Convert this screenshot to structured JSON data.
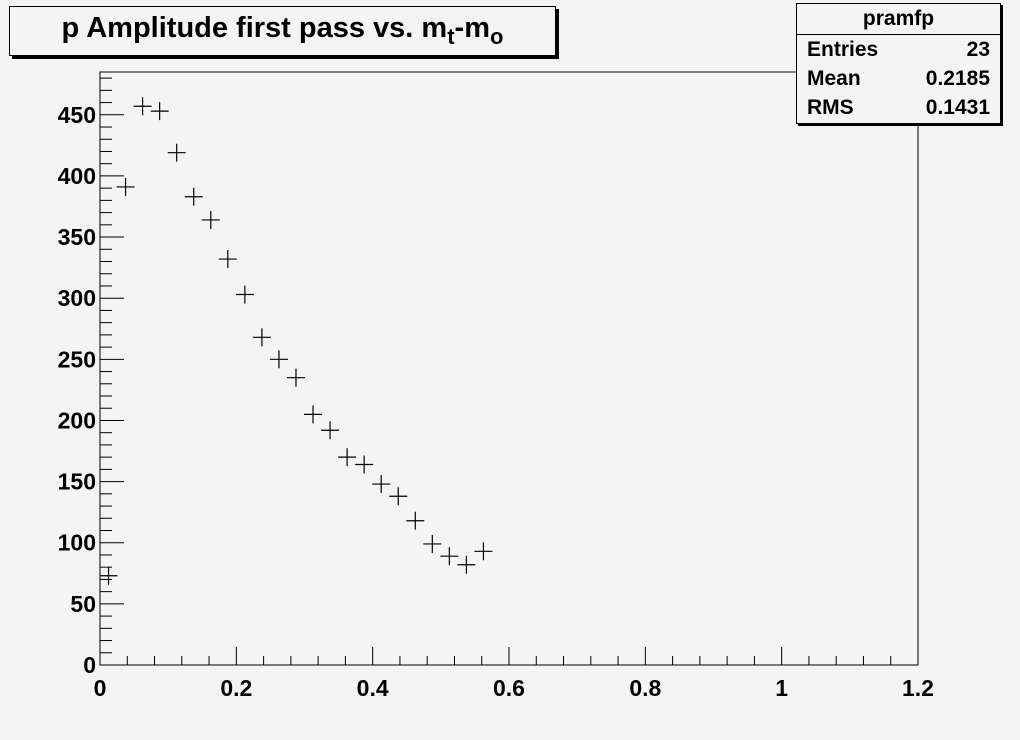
{
  "title": {
    "main": "p Amplitude first pass vs. m",
    "sub_t": "t",
    "dash": "-m",
    "sub_o": "o"
  },
  "stats": {
    "name": "pramfp",
    "rows": [
      {
        "label": "Entries",
        "value": "23"
      },
      {
        "label": "Mean",
        "value": "0.2185"
      },
      {
        "label": "RMS",
        "value": "0.1431"
      }
    ]
  },
  "chart_data": {
    "type": "scatter",
    "marker": "cross",
    "title": "p Amplitude first pass vs. mt-mo",
    "xlim": [
      0,
      1.2
    ],
    "ylim": [
      0,
      485
    ],
    "x_ticks": [
      0,
      0.2,
      0.4,
      0.6,
      0.8,
      1,
      1.2
    ],
    "x_tick_labels": [
      "0",
      "0.2",
      "0.4",
      "0.6",
      "0.8",
      "1",
      "1.2"
    ],
    "y_ticks": [
      0,
      50,
      100,
      150,
      200,
      250,
      300,
      350,
      400,
      450
    ],
    "y_tick_labels": [
      "0",
      "50",
      "100",
      "150",
      "200",
      "250",
      "300",
      "350",
      "400",
      "450"
    ],
    "points": [
      {
        "x": 0.0125,
        "y": 73
      },
      {
        "x": 0.0375,
        "y": 391
      },
      {
        "x": 0.0625,
        "y": 457
      },
      {
        "x": 0.0875,
        "y": 453
      },
      {
        "x": 0.1125,
        "y": 419
      },
      {
        "x": 0.1375,
        "y": 383
      },
      {
        "x": 0.1625,
        "y": 364
      },
      {
        "x": 0.1875,
        "y": 332
      },
      {
        "x": 0.2125,
        "y": 303
      },
      {
        "x": 0.2375,
        "y": 268
      },
      {
        "x": 0.2625,
        "y": 250
      },
      {
        "x": 0.2875,
        "y": 235
      },
      {
        "x": 0.3125,
        "y": 205
      },
      {
        "x": 0.3375,
        "y": 192
      },
      {
        "x": 0.3625,
        "y": 170
      },
      {
        "x": 0.3875,
        "y": 164
      },
      {
        "x": 0.4125,
        "y": 148
      },
      {
        "x": 0.4375,
        "y": 138
      },
      {
        "x": 0.4625,
        "y": 118
      },
      {
        "x": 0.4875,
        "y": 99
      },
      {
        "x": 0.5125,
        "y": 89
      },
      {
        "x": 0.5375,
        "y": 82
      },
      {
        "x": 0.5625,
        "y": 93
      }
    ],
    "grid": false,
    "legend": "top-right stats box"
  }
}
